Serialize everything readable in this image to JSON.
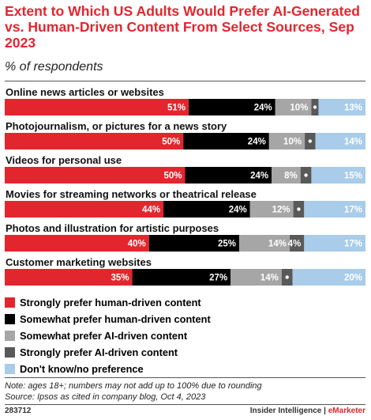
{
  "header": {
    "title": "Extent to Which US Adults Would Prefer AI-Generated vs. Human-Driven Content From Select Sources, Sep 2023",
    "subtitle": "% of respondents"
  },
  "chart_data": {
    "type": "bar",
    "orientation": "horizontal",
    "stacked": true,
    "categories": [
      "Online news articles or websites",
      "Photojournalism, or pictures for a news story",
      "Videos for personal use",
      "Movies for streaming networks or theatrical release",
      "Photos and illustration for artistic purposes",
      "Customer marketing websites"
    ],
    "series": [
      {
        "name": "Strongly prefer human-driven content",
        "color": "#e3262e",
        "values": [
          51,
          50,
          50,
          44,
          40,
          35
        ]
      },
      {
        "name": "Somewhat prefer human-driven content",
        "color": "#000000",
        "values": [
          24,
          24,
          24,
          24,
          25,
          27
        ]
      },
      {
        "name": "Somewhat prefer AI-driven content",
        "color": "#a6a6a6",
        "values": [
          10,
          10,
          8,
          12,
          14,
          14
        ]
      },
      {
        "name": "Strongly prefer AI-driven content",
        "color": "#595959",
        "values": [
          2,
          3,
          3,
          3,
          4,
          3
        ]
      },
      {
        "name": "Don't know/no preference",
        "color": "#a8ccea",
        "values": [
          13,
          14,
          15,
          17,
          17,
          20
        ]
      }
    ],
    "value_suffix": "%",
    "legend_position": "bottom-left",
    "grid": false
  },
  "legend": [
    {
      "label": "Strongly prefer human-driven content",
      "color": "#e3262e"
    },
    {
      "label": "Somewhat prefer human-driven content",
      "color": "#000000"
    },
    {
      "label": "Somewhat prefer AI-driven content",
      "color": "#a6a6a6"
    },
    {
      "label": "Strongly prefer AI-driven content",
      "color": "#595959"
    },
    {
      "label": "Don't know/no preference",
      "color": "#a8ccea"
    }
  ],
  "notes": {
    "note": "Note: ages 18+; numbers may not add up to 100% due to rounding",
    "source": "Source: Ipsos as cited in company blog, Oct 4, 2023"
  },
  "footer": {
    "id": "283712",
    "brand": "Insider Intelligence",
    "separator": " | ",
    "brand2": "eMarketer"
  }
}
